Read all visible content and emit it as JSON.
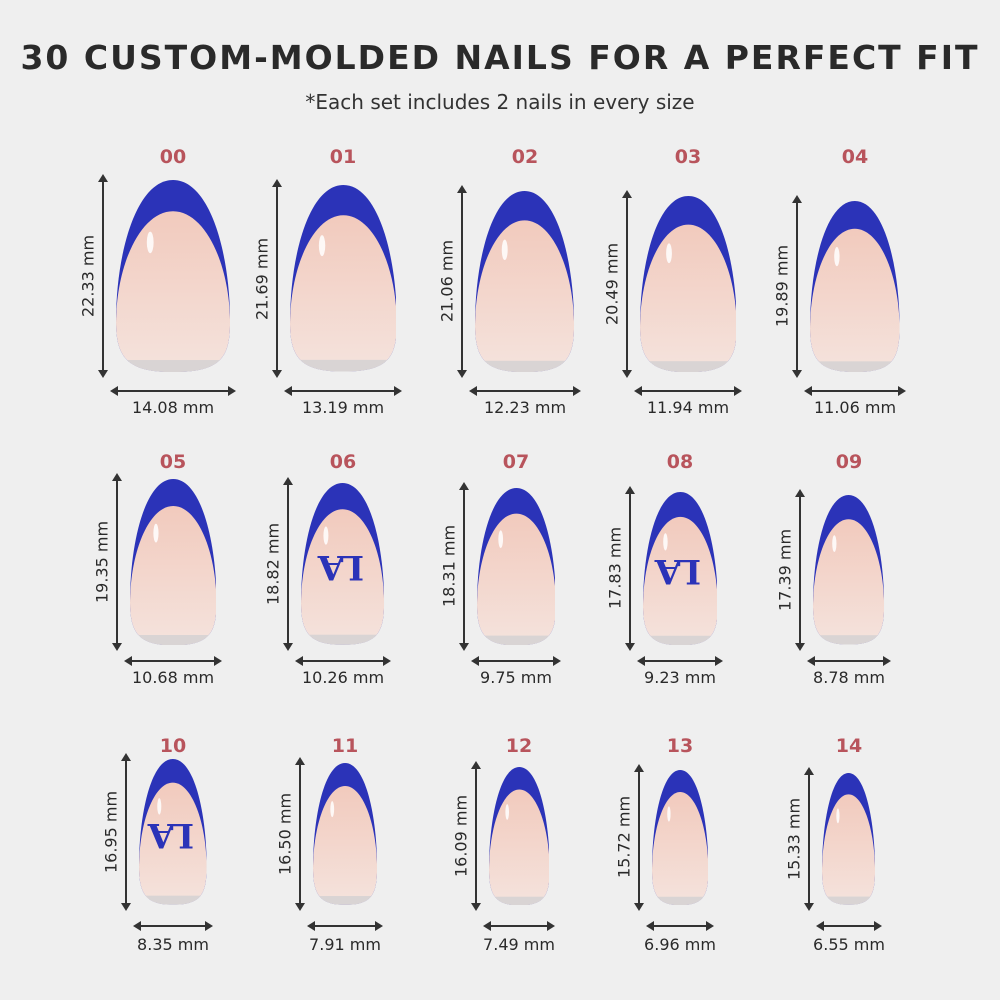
{
  "header": {
    "title": "30 CUSTOM-MOLDED NAILS FOR A PERFECT FIT",
    "subtitle": "*Each set includes 2 nails in every size"
  },
  "colors": {
    "tip": "#2b33b8",
    "body": "#f2cabd",
    "label": "#b8545c",
    "background": "#efefef"
  },
  "nails": [
    {
      "size": "00",
      "height": "22.33 mm",
      "width": "14.08 mm",
      "logo": ""
    },
    {
      "size": "01",
      "height": "21.69 mm",
      "width": "13.19 mm",
      "logo": ""
    },
    {
      "size": "02",
      "height": "21.06 mm",
      "width": "12.23 mm",
      "logo": ""
    },
    {
      "size": "03",
      "height": "20.49 mm",
      "width": "11.94 mm",
      "logo": ""
    },
    {
      "size": "04",
      "height": "19.89 mm",
      "width": "11.06 mm",
      "logo": ""
    },
    {
      "size": "05",
      "height": "19.35 mm",
      "width": "10.68 mm",
      "logo": ""
    },
    {
      "size": "06",
      "height": "18.82 mm",
      "width": "10.26 mm",
      "logo": "LA"
    },
    {
      "size": "07",
      "height": "18.31 mm",
      "width": "9.75 mm",
      "logo": ""
    },
    {
      "size": "08",
      "height": "17.83 mm",
      "width": "9.23 mm",
      "logo": "LA"
    },
    {
      "size": "09",
      "height": "17.39 mm",
      "width": "8.78 mm",
      "logo": ""
    },
    {
      "size": "10",
      "height": "16.95 mm",
      "width": "8.35 mm",
      "logo": "LA"
    },
    {
      "size": "11",
      "height": "16.50 mm",
      "width": "7.91 mm",
      "logo": ""
    },
    {
      "size": "12",
      "height": "16.09 mm",
      "width": "7.49 mm",
      "logo": ""
    },
    {
      "size": "13",
      "height": "15.72 mm",
      "width": "6.96 mm",
      "logo": ""
    },
    {
      "size": "14",
      "height": "15.33 mm",
      "width": "6.55 mm",
      "logo": ""
    }
  ]
}
